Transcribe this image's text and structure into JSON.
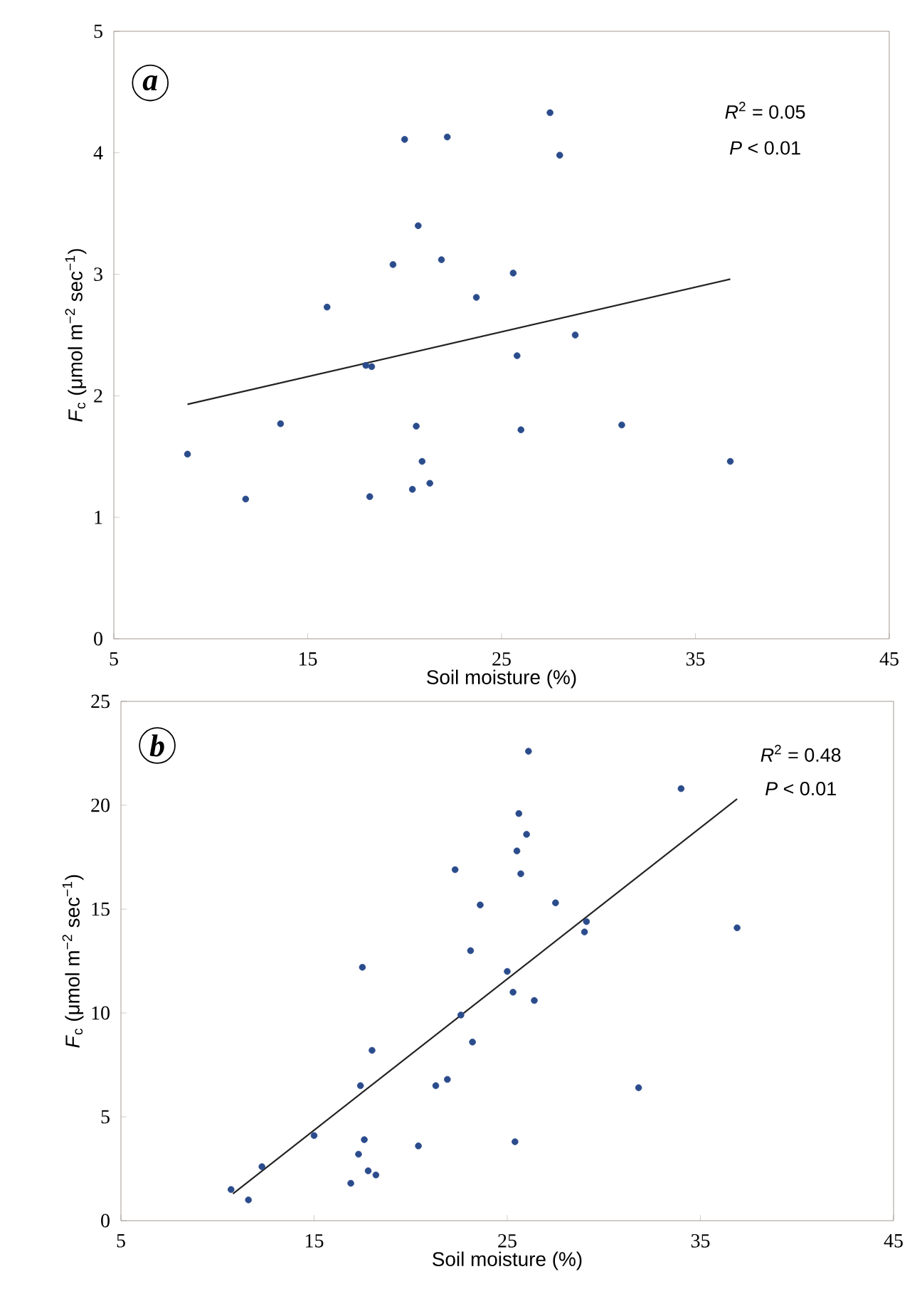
{
  "chart_data": [
    {
      "type": "scatter",
      "xlabel": "Soil moisture (%)",
      "ylabel": "*F*$_{c}$ (μmol m$^{−2}$ sec$^{−1}$)",
      "annotations": [
        "a",
        "*R*$^{2}$ = 0.05",
        "*P* < 0.01"
      ],
      "xlim": [
        5,
        45
      ],
      "xticks": [
        5,
        15,
        25,
        35,
        45
      ],
      "ylim": [
        0,
        5
      ],
      "yticks": [
        0,
        1,
        2,
        3,
        4,
        5
      ],
      "series": [
        {
          "marker": "circle",
          "color": "#2b4c8c",
          "x": [
            8.8,
            11.8,
            13.6,
            16.0,
            18.0,
            18.3,
            18.2,
            19.4,
            20.0,
            20.4,
            20.6,
            20.7,
            20.9,
            21.3,
            21.9,
            22.2,
            23.7,
            25.6,
            25.8,
            26.0,
            27.5,
            28.0,
            28.8,
            31.2,
            36.8
          ],
          "values": [
            1.52,
            1.15,
            1.77,
            2.73,
            2.25,
            2.24,
            1.17,
            3.08,
            4.11,
            1.23,
            1.75,
            3.4,
            1.46,
            1.28,
            3.12,
            4.13,
            2.81,
            3.01,
            2.33,
            1.72,
            4.33,
            3.98,
            2.5,
            1.76,
            1.46
          ]
        },
        {
          "type": "line",
          "marker": "none",
          "color": "#222222",
          "x": [
            8.8,
            36.8
          ],
          "values": [
            1.93,
            2.96
          ]
        }
      ]
    },
    {
      "type": "scatter",
      "xlabel": "Soil moisture (%)",
      "ylabel": "*F*$_{c}$ (μmol m$^{−2}$ sec$^{−1}$)",
      "annotations": [
        "b",
        "*R*$^{2}$ = 0.48",
        "*P* < 0.01"
      ],
      "xlim": [
        5,
        45
      ],
      "xticks": [
        5,
        15,
        25,
        35,
        45
      ],
      "ylim": [
        0,
        25
      ],
      "yticks": [
        0,
        5,
        10,
        15,
        20,
        25
      ],
      "series": [
        {
          "marker": "circle",
          "color": "#2b4c8c",
          "x": [
            10.7,
            11.6,
            12.3,
            15.0,
            16.9,
            17.3,
            17.4,
            17.5,
            17.6,
            17.8,
            18.0,
            18.2,
            20.4,
            21.3,
            21.9,
            22.3,
            22.6,
            23.1,
            23.2,
            23.6,
            25.0,
            25.3,
            25.4,
            25.5,
            25.6,
            25.7,
            26.0,
            26.1,
            26.4,
            27.5,
            29.0,
            29.1,
            31.8,
            34.0,
            36.9
          ],
          "values": [
            1.5,
            1.0,
            2.6,
            4.1,
            1.8,
            3.2,
            6.5,
            12.2,
            3.9,
            2.4,
            8.2,
            2.2,
            3.6,
            6.5,
            6.8,
            16.9,
            9.9,
            13.0,
            8.6,
            15.2,
            12.0,
            11.0,
            3.8,
            17.8,
            19.6,
            16.7,
            18.6,
            22.6,
            10.6,
            15.3,
            13.9,
            14.4,
            6.4,
            20.8,
            14.1
          ]
        },
        {
          "type": "line",
          "marker": "none",
          "color": "#222222",
          "x": [
            10.8,
            36.9
          ],
          "values": [
            1.3,
            20.3
          ]
        }
      ]
    }
  ]
}
